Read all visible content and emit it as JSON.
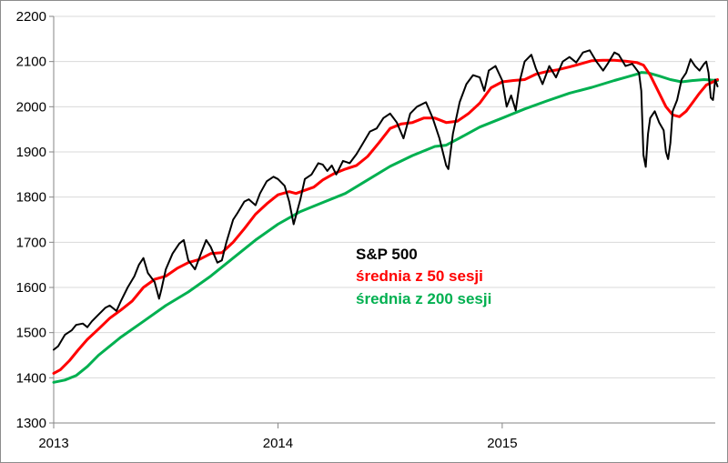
{
  "chart_data": {
    "type": "line",
    "y_ticks": [
      "1300",
      "1400",
      "1500",
      "1600",
      "1700",
      "1800",
      "1900",
      "2000",
      "2100",
      "2200"
    ],
    "x_ticks": [
      {
        "label": "2013",
        "value": 2013
      },
      {
        "label": "2014",
        "value": 2014
      },
      {
        "label": "2015",
        "value": 2015
      }
    ],
    "xlim": [
      2013.0,
      2015.95
    ],
    "ylim": [
      1300,
      2200
    ],
    "grid": "horizontal",
    "legend_position": "center",
    "legend": [
      {
        "label": "S&P 500",
        "color": "#000000"
      },
      {
        "label": "średnia z 50 sesji",
        "color": "#ff0000"
      },
      {
        "label": "średnia z 200 sesji",
        "color": "#00b050"
      }
    ],
    "series": [
      {
        "name": "S&P 500",
        "color": "#000000",
        "points": [
          [
            2013.0,
            1462
          ],
          [
            2013.02,
            1470
          ],
          [
            2013.05,
            1495
          ],
          [
            2013.08,
            1505
          ],
          [
            2013.1,
            1517
          ],
          [
            2013.13,
            1520
          ],
          [
            2013.15,
            1512
          ],
          [
            2013.17,
            1525
          ],
          [
            2013.2,
            1540
          ],
          [
            2013.23,
            1555
          ],
          [
            2013.25,
            1560
          ],
          [
            2013.28,
            1548
          ],
          [
            2013.3,
            1570
          ],
          [
            2013.33,
            1600
          ],
          [
            2013.36,
            1625
          ],
          [
            2013.38,
            1650
          ],
          [
            2013.4,
            1665
          ],
          [
            2013.42,
            1632
          ],
          [
            2013.45,
            1612
          ],
          [
            2013.47,
            1575
          ],
          [
            2013.48,
            1595
          ],
          [
            2013.5,
            1640
          ],
          [
            2013.53,
            1675
          ],
          [
            2013.56,
            1697
          ],
          [
            2013.58,
            1705
          ],
          [
            2013.6,
            1660
          ],
          [
            2013.63,
            1640
          ],
          [
            2013.66,
            1680
          ],
          [
            2013.68,
            1705
          ],
          [
            2013.7,
            1690
          ],
          [
            2013.73,
            1655
          ],
          [
            2013.75,
            1660
          ],
          [
            2013.77,
            1700
          ],
          [
            2013.8,
            1750
          ],
          [
            2013.82,
            1765
          ],
          [
            2013.85,
            1790
          ],
          [
            2013.87,
            1795
          ],
          [
            2013.9,
            1782
          ],
          [
            2013.92,
            1808
          ],
          [
            2013.95,
            1835
          ],
          [
            2013.98,
            1845
          ],
          [
            2014.0,
            1840
          ],
          [
            2014.03,
            1825
          ],
          [
            2014.05,
            1790
          ],
          [
            2014.07,
            1740
          ],
          [
            2014.1,
            1795
          ],
          [
            2014.12,
            1840
          ],
          [
            2014.15,
            1850
          ],
          [
            2014.18,
            1875
          ],
          [
            2014.2,
            1872
          ],
          [
            2014.22,
            1858
          ],
          [
            2014.24,
            1870
          ],
          [
            2014.26,
            1850
          ],
          [
            2014.29,
            1880
          ],
          [
            2014.32,
            1875
          ],
          [
            2014.35,
            1895
          ],
          [
            2014.38,
            1920
          ],
          [
            2014.41,
            1945
          ],
          [
            2014.44,
            1952
          ],
          [
            2014.47,
            1975
          ],
          [
            2014.5,
            1985
          ],
          [
            2014.53,
            1965
          ],
          [
            2014.56,
            1930
          ],
          [
            2014.59,
            1985
          ],
          [
            2014.62,
            2000
          ],
          [
            2014.66,
            2010
          ],
          [
            2014.69,
            1975
          ],
          [
            2014.72,
            1930
          ],
          [
            2014.75,
            1870
          ],
          [
            2014.76,
            1862
          ],
          [
            2014.78,
            1940
          ],
          [
            2014.81,
            2010
          ],
          [
            2014.84,
            2050
          ],
          [
            2014.87,
            2070
          ],
          [
            2014.9,
            2065
          ],
          [
            2014.92,
            2035
          ],
          [
            2014.94,
            2080
          ],
          [
            2014.97,
            2090
          ],
          [
            2015.0,
            2058
          ],
          [
            2015.02,
            2000
          ],
          [
            2015.04,
            2025
          ],
          [
            2015.06,
            1992
          ],
          [
            2015.08,
            2060
          ],
          [
            2015.1,
            2100
          ],
          [
            2015.13,
            2115
          ],
          [
            2015.15,
            2085
          ],
          [
            2015.18,
            2050
          ],
          [
            2015.21,
            2090
          ],
          [
            2015.24,
            2065
          ],
          [
            2015.27,
            2100
          ],
          [
            2015.3,
            2110
          ],
          [
            2015.33,
            2098
          ],
          [
            2015.36,
            2120
          ],
          [
            2015.39,
            2125
          ],
          [
            2015.42,
            2100
          ],
          [
            2015.45,
            2080
          ],
          [
            2015.47,
            2095
          ],
          [
            2015.5,
            2120
          ],
          [
            2015.52,
            2115
          ],
          [
            2015.55,
            2090
          ],
          [
            2015.58,
            2095
          ],
          [
            2015.61,
            2075
          ],
          [
            2015.62,
            2035
          ],
          [
            2015.63,
            1893
          ],
          [
            2015.64,
            1867
          ],
          [
            2015.65,
            1940
          ],
          [
            2015.66,
            1975
          ],
          [
            2015.68,
            1990
          ],
          [
            2015.7,
            1965
          ],
          [
            2015.72,
            1948
          ],
          [
            2015.73,
            1900
          ],
          [
            2015.74,
            1884
          ],
          [
            2015.75,
            1920
          ],
          [
            2015.76,
            1990
          ],
          [
            2015.78,
            2015
          ],
          [
            2015.8,
            2060
          ],
          [
            2015.82,
            2075
          ],
          [
            2015.84,
            2105
          ],
          [
            2015.86,
            2090
          ],
          [
            2015.88,
            2080
          ],
          [
            2015.9,
            2095
          ],
          [
            2015.91,
            2100
          ],
          [
            2015.92,
            2075
          ],
          [
            2015.93,
            2020
          ],
          [
            2015.94,
            2015
          ],
          [
            2015.95,
            2060
          ],
          [
            2015.96,
            2045
          ]
        ]
      },
      {
        "name": "średnia z 50 sesji",
        "color": "#ff0000",
        "points": [
          [
            2013.0,
            1410
          ],
          [
            2013.03,
            1418
          ],
          [
            2013.07,
            1438
          ],
          [
            2013.11,
            1462
          ],
          [
            2013.15,
            1485
          ],
          [
            2013.2,
            1508
          ],
          [
            2013.25,
            1532
          ],
          [
            2013.3,
            1550
          ],
          [
            2013.35,
            1570
          ],
          [
            2013.4,
            1600
          ],
          [
            2013.45,
            1618
          ],
          [
            2013.5,
            1625
          ],
          [
            2013.55,
            1642
          ],
          [
            2013.6,
            1655
          ],
          [
            2013.65,
            1662
          ],
          [
            2013.7,
            1675
          ],
          [
            2013.75,
            1677
          ],
          [
            2013.8,
            1700
          ],
          [
            2013.85,
            1730
          ],
          [
            2013.9,
            1762
          ],
          [
            2013.95,
            1785
          ],
          [
            2014.0,
            1805
          ],
          [
            2014.05,
            1812
          ],
          [
            2014.08,
            1808
          ],
          [
            2014.12,
            1815
          ],
          [
            2014.16,
            1822
          ],
          [
            2014.2,
            1838
          ],
          [
            2014.25,
            1852
          ],
          [
            2014.3,
            1862
          ],
          [
            2014.35,
            1870
          ],
          [
            2014.4,
            1890
          ],
          [
            2014.45,
            1920
          ],
          [
            2014.5,
            1952
          ],
          [
            2014.55,
            1962
          ],
          [
            2014.6,
            1965
          ],
          [
            2014.65,
            1975
          ],
          [
            2014.7,
            1975
          ],
          [
            2014.75,
            1965
          ],
          [
            2014.8,
            1968
          ],
          [
            2014.85,
            1985
          ],
          [
            2014.9,
            2008
          ],
          [
            2014.95,
            2042
          ],
          [
            2015.0,
            2055
          ],
          [
            2015.05,
            2058
          ],
          [
            2015.1,
            2060
          ],
          [
            2015.15,
            2072
          ],
          [
            2015.2,
            2078
          ],
          [
            2015.25,
            2082
          ],
          [
            2015.3,
            2088
          ],
          [
            2015.35,
            2095
          ],
          [
            2015.4,
            2102
          ],
          [
            2015.45,
            2103
          ],
          [
            2015.5,
            2103
          ],
          [
            2015.55,
            2101
          ],
          [
            2015.6,
            2098
          ],
          [
            2015.63,
            2092
          ],
          [
            2015.66,
            2070
          ],
          [
            2015.7,
            2030
          ],
          [
            2015.73,
            2000
          ],
          [
            2015.76,
            1982
          ],
          [
            2015.79,
            1978
          ],
          [
            2015.82,
            1990
          ],
          [
            2015.85,
            2010
          ],
          [
            2015.88,
            2030
          ],
          [
            2015.91,
            2048
          ],
          [
            2015.94,
            2055
          ],
          [
            2015.96,
            2060
          ]
        ]
      },
      {
        "name": "średnia z 200 sesji",
        "color": "#00b050",
        "points": [
          [
            2013.0,
            1390
          ],
          [
            2013.05,
            1395
          ],
          [
            2013.1,
            1405
          ],
          [
            2013.15,
            1425
          ],
          [
            2013.2,
            1450
          ],
          [
            2013.3,
            1490
          ],
          [
            2013.4,
            1525
          ],
          [
            2013.5,
            1560
          ],
          [
            2013.6,
            1590
          ],
          [
            2013.7,
            1625
          ],
          [
            2013.8,
            1665
          ],
          [
            2013.9,
            1705
          ],
          [
            2014.0,
            1740
          ],
          [
            2014.1,
            1768
          ],
          [
            2014.2,
            1788
          ],
          [
            2014.3,
            1808
          ],
          [
            2014.4,
            1838
          ],
          [
            2014.5,
            1868
          ],
          [
            2014.6,
            1892
          ],
          [
            2014.7,
            1912
          ],
          [
            2014.75,
            1915
          ],
          [
            2014.8,
            1928
          ],
          [
            2014.9,
            1955
          ],
          [
            2015.0,
            1975
          ],
          [
            2015.1,
            1995
          ],
          [
            2015.2,
            2013
          ],
          [
            2015.3,
            2030
          ],
          [
            2015.4,
            2043
          ],
          [
            2015.5,
            2058
          ],
          [
            2015.55,
            2065
          ],
          [
            2015.6,
            2072
          ],
          [
            2015.62,
            2076
          ],
          [
            2015.65,
            2075
          ],
          [
            2015.7,
            2068
          ],
          [
            2015.75,
            2060
          ],
          [
            2015.8,
            2055
          ],
          [
            2015.85,
            2058
          ],
          [
            2015.9,
            2060
          ],
          [
            2015.96,
            2058
          ]
        ]
      }
    ]
  }
}
